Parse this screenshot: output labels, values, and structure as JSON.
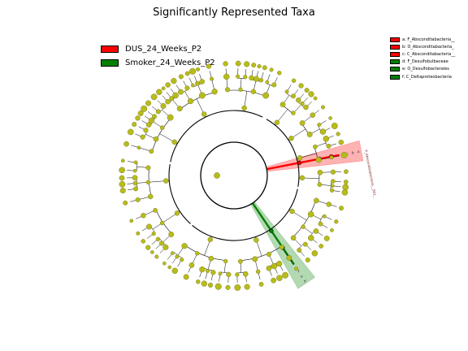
{
  "chart_data": {
    "type": "cladogram",
    "title": "Significantly Represented Taxa",
    "ring_levels": [
      "root",
      "phylum",
      "class",
      "order",
      "family",
      "genus"
    ],
    "groups": [
      {
        "name": "DUS_24_Weeks_P2",
        "color": "#ff0000"
      },
      {
        "name": "Smoker_24_Weeks_P2",
        "color": "#008000"
      }
    ],
    "taxa_key": [
      {
        "label": "a: F_Absconditabacteria__",
        "group": "DUS_24_Weeks_P2",
        "color": "#ff0000"
      },
      {
        "label": "b: O_Absconditabacteria_",
        "group": "DUS_24_Weeks_P2",
        "color": "#ff0000"
      },
      {
        "label": "c: C_Absconditabacteria__",
        "group": "DUS_24_Weeks_P2",
        "color": "#ff0000"
      },
      {
        "label": "d: F_Desulfobulbaceae",
        "group": "Smoker_24_Weeks_P2",
        "color": "#008000"
      },
      {
        "label": "e: O_Desulfobacterales",
        "group": "Smoker_24_Weeks_P2",
        "color": "#008000"
      },
      {
        "label": "f: C_Deltaproteobacteria",
        "group": "Smoker_24_Weeks_P2",
        "color": "#008000"
      }
    ],
    "highlighted_clades": [
      {
        "group": "DUS_24_Weeks_P2",
        "angle_deg": -11,
        "clade_letters": [
          "c",
          "b",
          "a"
        ],
        "outer_label": "P_Absconditabacteria__SR1_"
      },
      {
        "group": "Smoker_24_Weeks_P2",
        "angle_deg": 56,
        "clade_letters": [
          "f",
          "e",
          "d"
        ],
        "outer_label": ""
      }
    ]
  }
}
